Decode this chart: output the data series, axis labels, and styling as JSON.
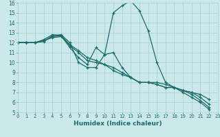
{
  "xlabel": "Humidex (Indice chaleur)",
  "xlim": [
    0,
    23
  ],
  "ylim": [
    5,
    16
  ],
  "xticks": [
    0,
    1,
    2,
    3,
    4,
    5,
    6,
    7,
    8,
    9,
    10,
    11,
    12,
    13,
    14,
    15,
    16,
    17,
    18,
    19,
    20,
    21,
    22,
    23
  ],
  "yticks": [
    5,
    6,
    7,
    8,
    9,
    10,
    11,
    12,
    13,
    14,
    15,
    16
  ],
  "bg_color": "#cce9e9",
  "grid_color": "#aad4d4",
  "line_color": "#1a6b6b",
  "lines": [
    [
      0,
      12,
      1,
      12,
      2,
      12,
      3,
      12.1,
      4,
      12.7,
      5,
      12.8,
      6,
      12.0,
      7,
      10.0,
      8,
      9.5,
      9,
      9.5,
      10,
      10.8,
      11,
      15.0,
      12,
      15.7,
      13,
      16.2,
      14,
      15.2,
      15,
      13.2,
      16,
      10.0,
      17,
      8.0,
      18,
      7.5,
      19,
      7.0,
      20,
      6.5,
      21,
      6.0,
      22,
      5.3
    ],
    [
      0,
      12,
      1,
      12,
      2,
      12,
      3,
      12.3,
      4,
      12.8,
      5,
      12.7,
      6,
      11.5,
      7,
      10.5,
      8,
      9.8,
      9,
      11.5,
      10,
      10.8,
      11,
      11.0,
      12,
      9.5,
      13,
      8.5,
      14,
      8.0,
      15,
      8.0,
      16,
      7.8,
      17,
      7.5,
      18,
      7.5,
      19,
      7.2,
      20,
      7.0,
      21,
      6.5,
      22,
      5.8
    ],
    [
      0,
      12,
      1,
      12,
      2,
      12,
      3,
      12.2,
      4,
      12.5,
      5,
      12.6,
      6,
      11.7,
      7,
      11.0,
      8,
      10.2,
      9,
      10.0,
      10,
      9.8,
      11,
      9.5,
      12,
      9.0,
      13,
      8.5,
      14,
      8.0,
      15,
      8.0,
      16,
      8.0,
      17,
      7.8,
      18,
      7.5,
      19,
      7.2,
      20,
      6.8,
      21,
      6.2,
      22,
      5.5
    ],
    [
      0,
      12,
      1,
      12,
      2,
      12,
      3,
      12.2,
      4,
      12.6,
      5,
      12.7,
      6,
      11.8,
      7,
      11.2,
      8,
      10.5,
      9,
      10.2,
      10,
      9.8,
      11,
      9.2,
      12,
      8.8,
      13,
      8.5,
      14,
      8.0,
      15,
      8.0,
      16,
      7.8,
      17,
      7.5,
      18,
      7.5,
      19,
      7.2,
      20,
      7.0,
      21,
      6.8,
      22,
      6.3
    ]
  ]
}
